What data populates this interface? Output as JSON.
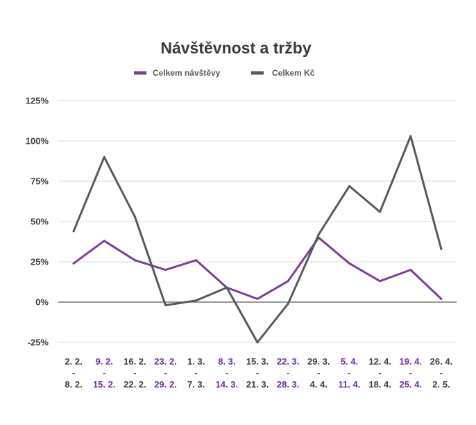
{
  "chart_data": {
    "type": "line",
    "title": "Návštěvnost a tržby",
    "xlabel": "",
    "ylabel": "",
    "ylim": [
      -0.25,
      1.25
    ],
    "yticks": [
      "125%",
      "100%",
      "75%",
      "50%",
      "25%",
      "0%",
      "-25%"
    ],
    "categories": [
      {
        "top": "2. 2.",
        "sep": "-",
        "bottom": "8. 2.",
        "color": "#404040"
      },
      {
        "top": "9. 2.",
        "sep": "-",
        "bottom": "15. 2.",
        "color": "#7030a0"
      },
      {
        "top": "16. 2.",
        "sep": "-",
        "bottom": "22. 2.",
        "color": "#404040"
      },
      {
        "top": "23. 2.",
        "sep": "-",
        "bottom": "29. 2.",
        "color": "#7030a0"
      },
      {
        "top": "1. 3.",
        "sep": "-",
        "bottom": "7. 3.",
        "color": "#404040"
      },
      {
        "top": "8. 3.",
        "sep": "-",
        "bottom": "14. 3.",
        "color": "#7030a0"
      },
      {
        "top": "15. 3.",
        "sep": "-",
        "bottom": "21. 3.",
        "color": "#404040"
      },
      {
        "top": "22. 3.",
        "sep": "-",
        "bottom": "28. 3.",
        "color": "#7030a0"
      },
      {
        "top": "29. 3.",
        "sep": "-",
        "bottom": "4. 4.",
        "color": "#404040"
      },
      {
        "top": "5. 4.",
        "sep": "-",
        "bottom": "11. 4.",
        "color": "#7030a0"
      },
      {
        "top": "12. 4.",
        "sep": "-",
        "bottom": "18. 4.",
        "color": "#404040"
      },
      {
        "top": "19. 4.",
        "sep": "-",
        "bottom": "25. 4.",
        "color": "#7030a0"
      },
      {
        "top": "26. 4.",
        "sep": "-",
        "bottom": "2. 5.",
        "color": "#404040"
      }
    ],
    "series": [
      {
        "name": "Celkem návštěvy",
        "color": "#7e3e98",
        "values": [
          0.24,
          0.38,
          0.26,
          0.2,
          0.26,
          0.09,
          0.02,
          0.13,
          0.4,
          0.24,
          0.13,
          0.2,
          0.02
        ]
      },
      {
        "name": "Celkem Kč",
        "color": "#595959",
        "values": [
          0.44,
          0.9,
          0.53,
          -0.02,
          0.01,
          0.09,
          -0.25,
          -0.01,
          0.42,
          0.72,
          0.56,
          1.03,
          0.33
        ]
      }
    ],
    "grid": true,
    "legend": "top-center"
  }
}
